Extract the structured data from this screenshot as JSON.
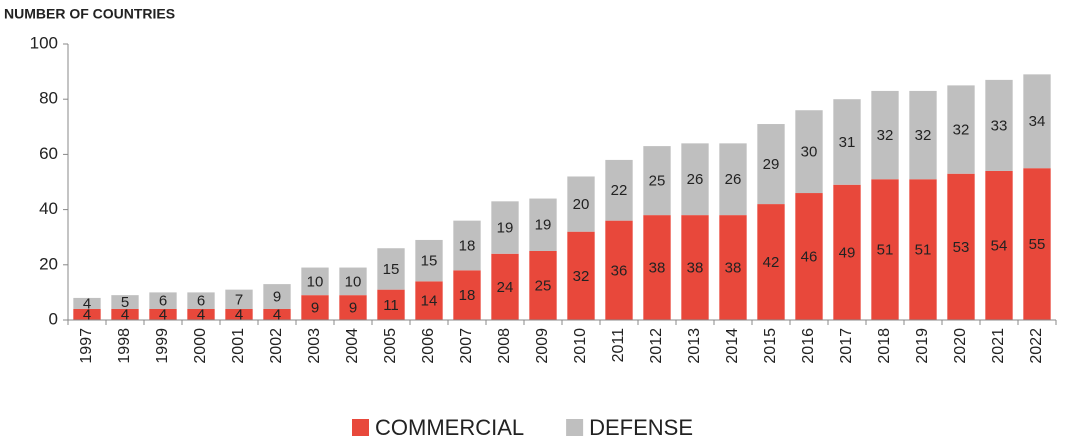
{
  "chart_data": {
    "type": "stacked_bar",
    "title": "NUMBER OF COUNTRIES",
    "categories": [
      "1997",
      "1998",
      "1999",
      "2000",
      "2001",
      "2002",
      "2003",
      "2004",
      "2005",
      "2006",
      "2007",
      "2008",
      "2009",
      "2010",
      "2011",
      "2012",
      "2013",
      "2014",
      "2015",
      "2016",
      "2017",
      "2018",
      "2019",
      "2020",
      "2021",
      "2022"
    ],
    "series": [
      {
        "name": "COMMERCIAL",
        "color": "#e8483b",
        "values": [
          4,
          4,
          4,
          4,
          4,
          4,
          9,
          9,
          11,
          14,
          18,
          24,
          25,
          32,
          36,
          38,
          38,
          38,
          42,
          46,
          49,
          51,
          51,
          53,
          54,
          55
        ]
      },
      {
        "name": "DEFENSE",
        "color": "#bfbfbf",
        "values": [
          4,
          5,
          6,
          6,
          7,
          9,
          10,
          10,
          15,
          15,
          18,
          19,
          19,
          20,
          22,
          25,
          26,
          26,
          29,
          30,
          31,
          32,
          32,
          32,
          33,
          34
        ]
      }
    ],
    "ylim": [
      0,
      100
    ],
    "yticks": [
      0,
      20,
      40,
      60,
      80,
      100
    ]
  }
}
